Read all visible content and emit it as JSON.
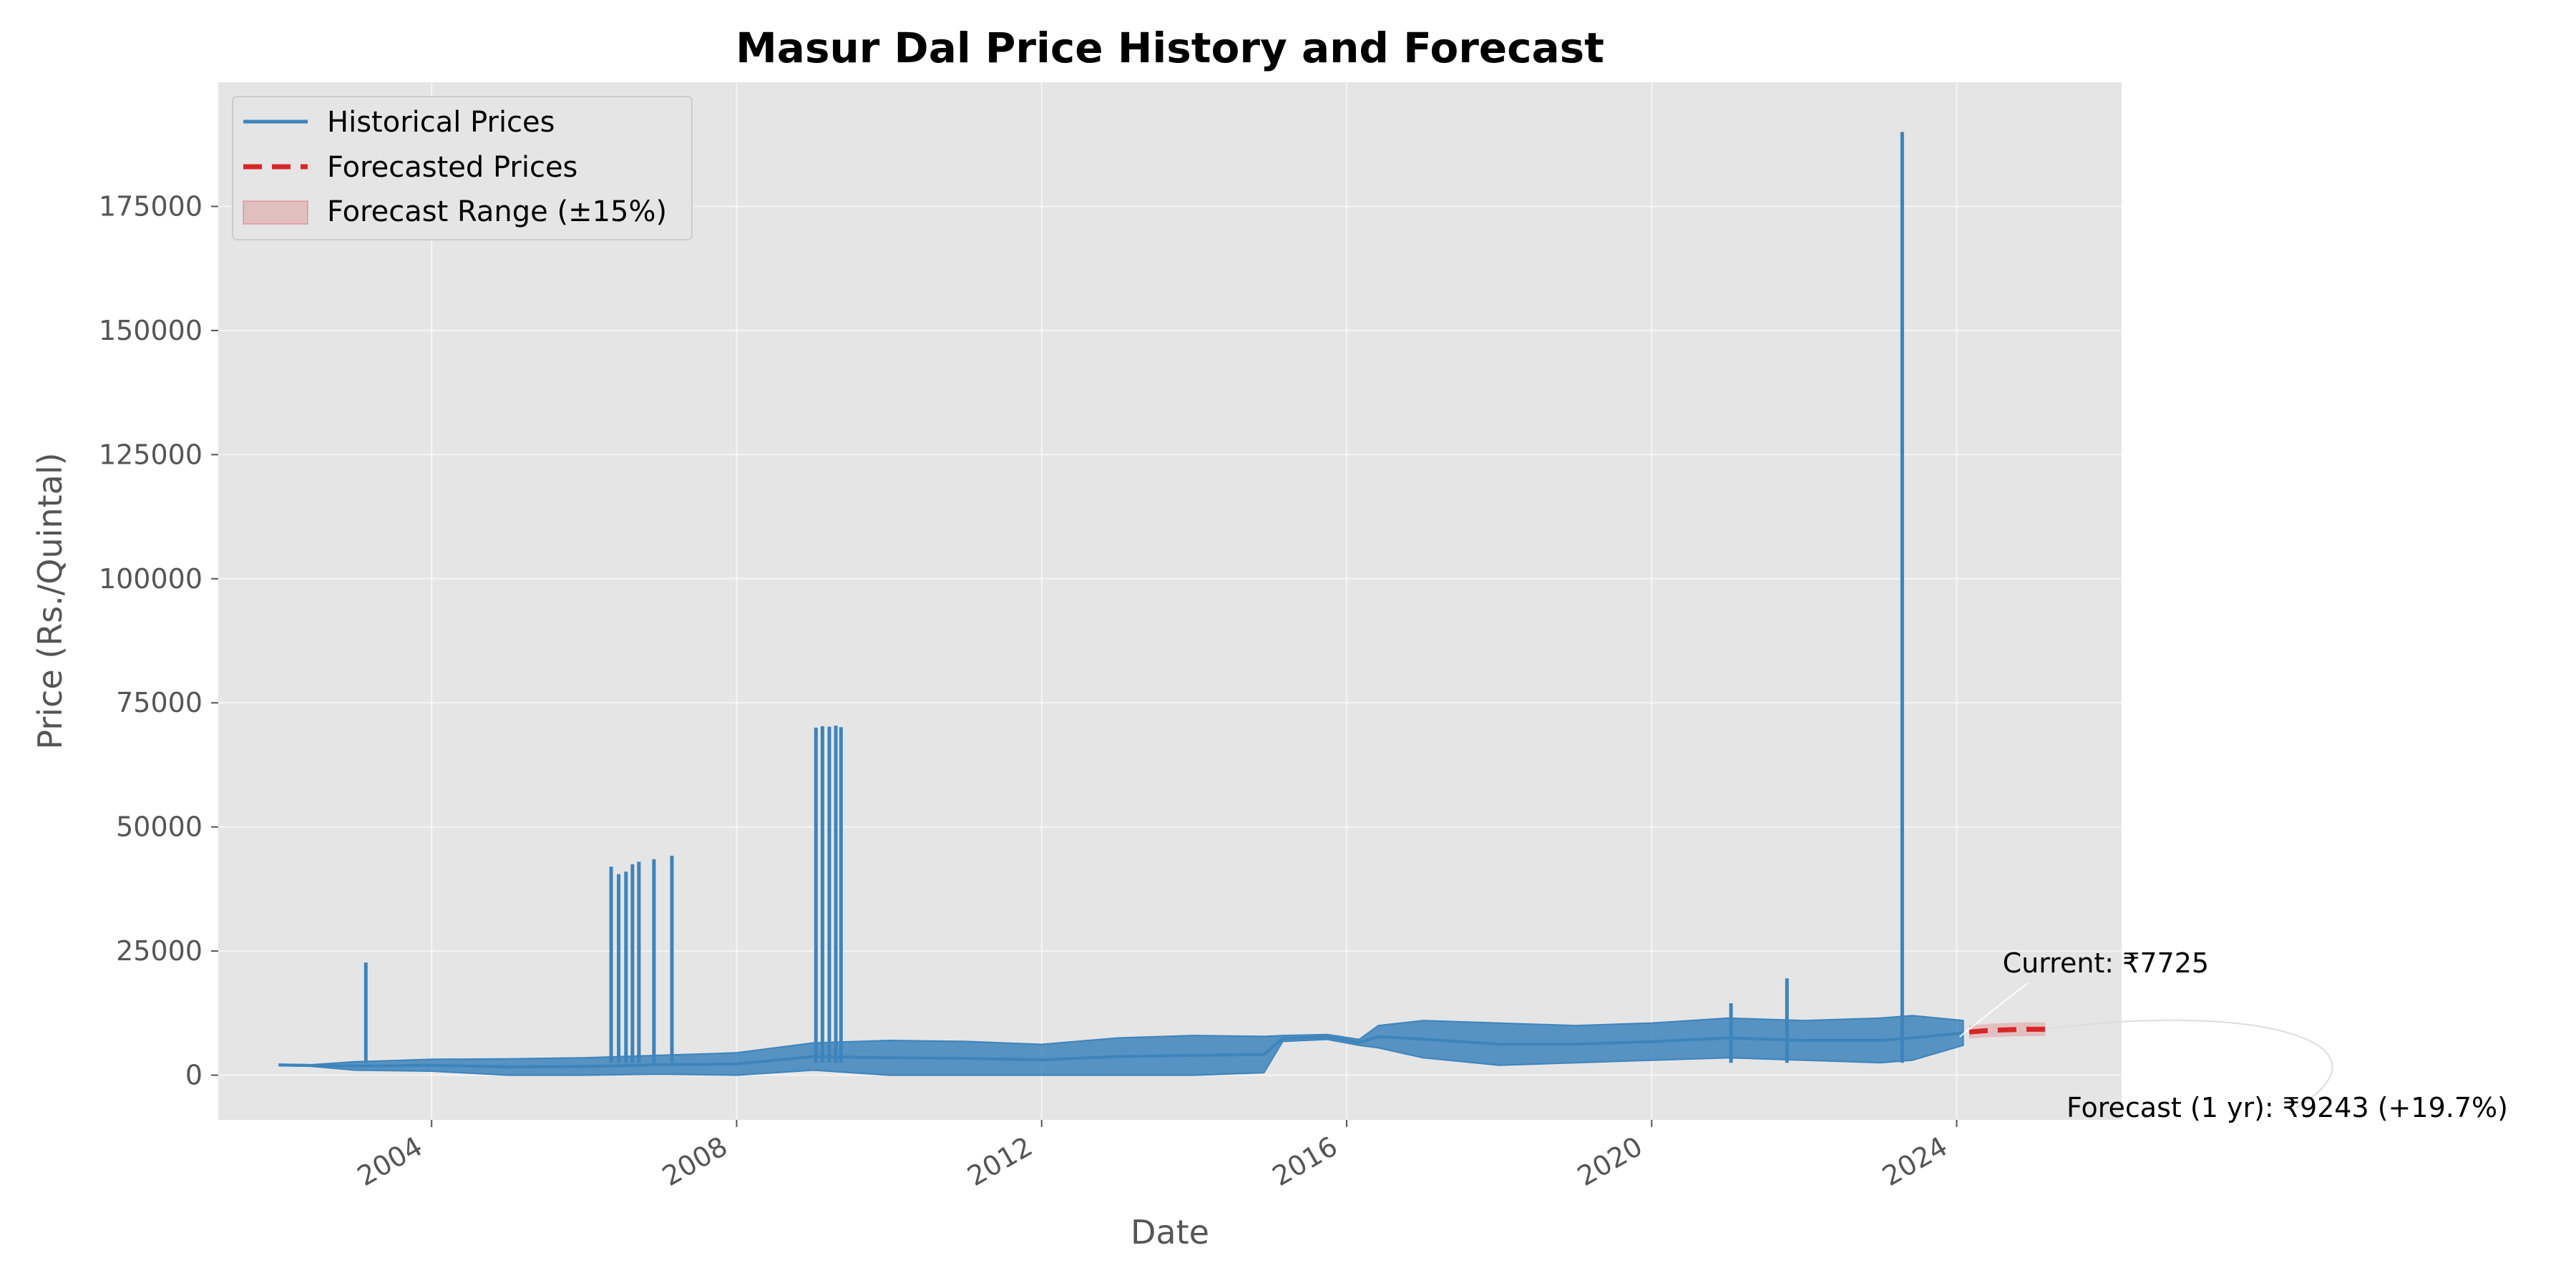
{
  "chart_data": {
    "type": "line",
    "title": "Masur Dal Price History and Forecast",
    "xlabel": "Date",
    "ylabel": "Price (Rs./Quintal)",
    "xlim": [
      "2001-03-15",
      "2026-03-01"
    ],
    "ylim": [
      -9000,
      200000
    ],
    "x_ticks": [
      "2004",
      "2008",
      "2012",
      "2016",
      "2020",
      "2024"
    ],
    "y_ticks": [
      0,
      25000,
      50000,
      75000,
      100000,
      125000,
      150000,
      175000
    ],
    "y_tick_labels": [
      "0",
      "25000",
      "50000",
      "75000",
      "100000",
      "125000",
      "150000",
      "175000"
    ],
    "grid": true,
    "legend_position": "top-left",
    "legend": [
      "Historical Prices",
      "Forecasted Prices",
      "Forecast Range (±15%)"
    ],
    "colors": {
      "historical": "#3d84bc",
      "forecast": "#d62728",
      "range": "#d62728",
      "background": "#e5e5e5"
    },
    "series": [
      {
        "name": "Historical Prices",
        "style": "solid",
        "band": [
          {
            "date": "2002-01-01",
            "low": 1900,
            "high": 2200
          },
          {
            "date": "2002-06-01",
            "low": 1800,
            "high": 2100
          },
          {
            "date": "2003-01-01",
            "low": 1000,
            "high": 2700
          },
          {
            "date": "2004-01-01",
            "low": 800,
            "high": 3200
          },
          {
            "date": "2005-01-01",
            "low": 0,
            "high": 3300
          },
          {
            "date": "2006-01-01",
            "low": 0,
            "high": 3500
          },
          {
            "date": "2007-01-01",
            "low": 200,
            "high": 4000
          },
          {
            "date": "2008-01-01",
            "low": 0,
            "high": 4500
          },
          {
            "date": "2009-01-01",
            "low": 1000,
            "high": 6500
          },
          {
            "date": "2010-01-01",
            "low": 0,
            "high": 7000
          },
          {
            "date": "2011-01-01",
            "low": 0,
            "high": 6800
          },
          {
            "date": "2012-01-01",
            "low": 0,
            "high": 6200
          },
          {
            "date": "2013-01-01",
            "low": 0,
            "high": 7500
          },
          {
            "date": "2014-01-01",
            "low": 0,
            "high": 8000
          },
          {
            "date": "2014-12-01",
            "low": 500,
            "high": 7800
          },
          {
            "date": "2015-03-01",
            "low": 6800,
            "high": 8000
          },
          {
            "date": "2015-10-01",
            "low": 7200,
            "high": 8200
          },
          {
            "date": "2016-03-01",
            "low": 6000,
            "high": 7200
          },
          {
            "date": "2016-06-01",
            "low": 5500,
            "high": 10000
          },
          {
            "date": "2017-01-01",
            "low": 3500,
            "high": 11000
          },
          {
            "date": "2018-01-01",
            "low": 2000,
            "high": 10500
          },
          {
            "date": "2019-01-01",
            "low": 2500,
            "high": 10000
          },
          {
            "date": "2020-01-01",
            "low": 3000,
            "high": 10500
          },
          {
            "date": "2021-01-01",
            "low": 3500,
            "high": 11500
          },
          {
            "date": "2022-01-01",
            "low": 3000,
            "high": 11000
          },
          {
            "date": "2023-01-01",
            "low": 2500,
            "high": 11500
          },
          {
            "date": "2023-06-01",
            "low": 3000,
            "high": 12000
          },
          {
            "date": "2024-02-01",
            "low": 6000,
            "high": 11000
          }
        ],
        "spikes": [
          {
            "date": "2003-02-20",
            "value": 22700
          },
          {
            "date": "2006-05-10",
            "value": 42000
          },
          {
            "date": "2006-06-15",
            "value": 40500
          },
          {
            "date": "2006-07-20",
            "value": 41000
          },
          {
            "date": "2006-08-20",
            "value": 42500
          },
          {
            "date": "2006-09-20",
            "value": 43000
          },
          {
            "date": "2006-12-01",
            "value": 43500
          },
          {
            "date": "2007-02-25",
            "value": 44200
          },
          {
            "date": "2009-01-15",
            "value": 70000
          },
          {
            "date": "2009-02-15",
            "value": 70300
          },
          {
            "date": "2009-03-20",
            "value": 70200
          },
          {
            "date": "2009-04-20",
            "value": 70400
          },
          {
            "date": "2009-05-15",
            "value": 70100
          },
          {
            "date": "2021-01-15",
            "value": 14500
          },
          {
            "date": "2021-10-10",
            "value": 19500
          },
          {
            "date": "2023-04-15",
            "value": 190000
          }
        ]
      },
      {
        "name": "Forecasted Prices",
        "style": "dashed",
        "points": [
          {
            "date": "2024-03-01",
            "value": 8700
          },
          {
            "date": "2024-06-01",
            "value": 9000
          },
          {
            "date": "2024-09-01",
            "value": 9150
          },
          {
            "date": "2024-12-01",
            "value": 9243
          },
          {
            "date": "2025-03-01",
            "value": 9243
          }
        ]
      },
      {
        "name": "Forecast Range (±15%)",
        "style": "band",
        "points": [
          {
            "date": "2024-03-01",
            "low": 7395,
            "high": 10005
          },
          {
            "date": "2024-06-01",
            "low": 7650,
            "high": 10350
          },
          {
            "date": "2024-09-01",
            "low": 7778,
            "high": 10523
          },
          {
            "date": "2024-12-01",
            "low": 7857,
            "high": 10629
          },
          {
            "date": "2025-03-01",
            "low": 7857,
            "high": 10629
          }
        ]
      }
    ],
    "annotations": [
      {
        "text": "Current: ₹7725",
        "date": "2024-01-15",
        "value": 7725
      },
      {
        "text": "Forecast (1 yr): ₹9243 (+19.7%)",
        "date": "2025-03-01",
        "value": 9243
      }
    ]
  }
}
